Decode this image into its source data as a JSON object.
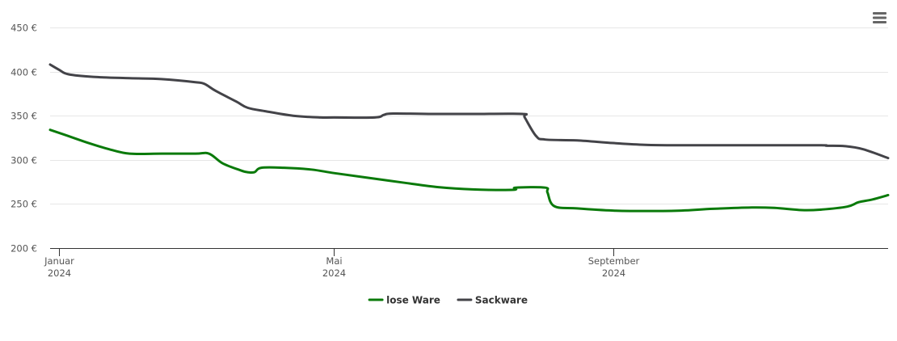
{
  "chart_data": {
    "type": "line",
    "title": "",
    "xlabel": "",
    "ylabel": "",
    "ylim": [
      200,
      450
    ],
    "yticks": [
      "200 €",
      "250 €",
      "300 €",
      "350 €",
      "400 €",
      "450 €"
    ],
    "ytick_values": [
      200,
      250,
      300,
      350,
      400,
      450
    ],
    "xlim": [
      "2023-12-28",
      "2024-12-31"
    ],
    "xticks": [
      {
        "date": "2024-01-01",
        "label": "Januar",
        "year": "2024"
      },
      {
        "date": "2024-05-01",
        "label": "Mai",
        "year": "2024"
      },
      {
        "date": "2024-09-01",
        "label": "September",
        "year": "2024"
      }
    ],
    "grid": true,
    "legend": "bottom-center",
    "series": [
      {
        "name": "lose Ware",
        "color": "#0a7a0a",
        "points": [
          [
            "2023-12-28",
            334
          ],
          [
            "2024-01-05",
            327
          ],
          [
            "2024-01-14",
            319
          ],
          [
            "2024-01-23",
            312
          ],
          [
            "2024-02-01",
            307
          ],
          [
            "2024-02-15",
            307
          ],
          [
            "2024-03-01",
            307
          ],
          [
            "2024-03-07",
            307
          ],
          [
            "2024-03-13",
            296
          ],
          [
            "2024-03-21",
            288
          ],
          [
            "2024-03-24",
            286
          ],
          [
            "2024-03-27",
            286
          ],
          [
            "2024-03-30",
            291
          ],
          [
            "2024-04-09",
            291
          ],
          [
            "2024-04-21",
            289
          ],
          [
            "2024-05-01",
            285
          ],
          [
            "2024-05-15",
            280
          ],
          [
            "2024-06-01",
            274
          ],
          [
            "2024-06-16",
            269
          ],
          [
            "2024-07-01",
            266.5
          ],
          [
            "2024-07-19",
            266
          ],
          [
            "2024-07-20",
            268.5
          ],
          [
            "2024-08-02",
            268.5
          ],
          [
            "2024-08-03",
            263
          ],
          [
            "2024-08-06",
            247.5
          ],
          [
            "2024-08-16",
            245
          ],
          [
            "2024-09-01",
            242.5
          ],
          [
            "2024-09-17",
            242
          ],
          [
            "2024-10-01",
            242.5
          ],
          [
            "2024-10-15",
            244.5
          ],
          [
            "2024-11-01",
            246
          ],
          [
            "2024-11-11",
            245.5
          ],
          [
            "2024-11-23",
            243
          ],
          [
            "2024-12-01",
            243.5
          ],
          [
            "2024-12-13",
            247
          ],
          [
            "2024-12-18",
            252
          ],
          [
            "2024-12-24",
            255
          ],
          [
            "2024-12-31",
            260
          ]
        ]
      },
      {
        "name": "Sackware",
        "color": "#434348",
        "points": [
          [
            "2023-12-28",
            408
          ],
          [
            "2024-01-01",
            402
          ],
          [
            "2024-01-05",
            397
          ],
          [
            "2024-01-16",
            394
          ],
          [
            "2024-02-01",
            392.5
          ],
          [
            "2024-02-15",
            391.5
          ],
          [
            "2024-03-01",
            388
          ],
          [
            "2024-03-05",
            386
          ],
          [
            "2024-03-10",
            378
          ],
          [
            "2024-03-19",
            366
          ],
          [
            "2024-03-24",
            359
          ],
          [
            "2024-04-01",
            355
          ],
          [
            "2024-04-13",
            350
          ],
          [
            "2024-04-25",
            348
          ],
          [
            "2024-05-01",
            348
          ],
          [
            "2024-05-19",
            348
          ],
          [
            "2024-05-23",
            351
          ],
          [
            "2024-05-27",
            352.5
          ],
          [
            "2024-06-15",
            352
          ],
          [
            "2024-07-01",
            352
          ],
          [
            "2024-07-23",
            352
          ],
          [
            "2024-07-24",
            348
          ],
          [
            "2024-07-29",
            327
          ],
          [
            "2024-08-02",
            323
          ],
          [
            "2024-08-16",
            322
          ],
          [
            "2024-09-01",
            319
          ],
          [
            "2024-09-15",
            317
          ],
          [
            "2024-10-01",
            316.5
          ],
          [
            "2024-11-01",
            316.5
          ],
          [
            "2024-12-01",
            316.5
          ],
          [
            "2024-12-04",
            316
          ],
          [
            "2024-12-12",
            315.5
          ],
          [
            "2024-12-20",
            312
          ],
          [
            "2024-12-31",
            302
          ]
        ]
      }
    ]
  },
  "menu": {
    "icon": "hamburger-menu-icon"
  }
}
